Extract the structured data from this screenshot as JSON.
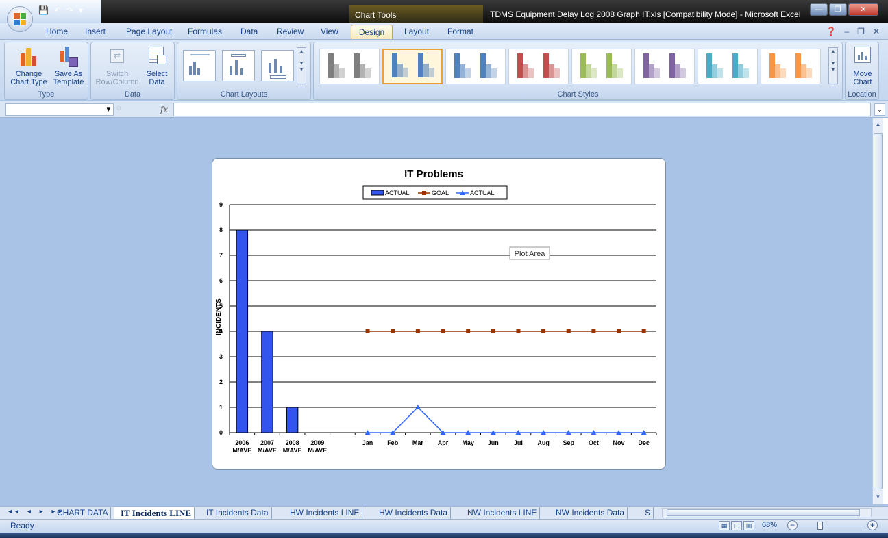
{
  "window": {
    "title": "TDMS Equipment Delay Log 2008 Graph IT.xls  [Compatibility Mode] - Microsoft Excel",
    "context_label": "Chart Tools",
    "controls": {
      "minimize": "—",
      "maximize": "❐",
      "close": "✕"
    }
  },
  "ribbon": {
    "tabs": [
      "Home",
      "Insert",
      "Page Layout",
      "Formulas",
      "Data",
      "Review",
      "View",
      "Design",
      "Layout",
      "Format"
    ],
    "active_tab": "Design",
    "groups": {
      "type": {
        "label": "Type",
        "change_chart_type": "Change\nChart Type",
        "save_as_template": "Save As\nTemplate"
      },
      "data": {
        "label": "Data",
        "switch_row_column": "Switch\nRow/Column",
        "select_data": "Select\nData"
      },
      "chart_layouts": {
        "label": "Chart Layouts"
      },
      "chart_styles": {
        "label": "Chart Styles"
      },
      "location": {
        "label": "Location",
        "move_chart": "Move\nChart"
      }
    },
    "style_colors": [
      "#7f7f7f",
      "#4f81bd",
      "#4f81bd",
      "#c0504d",
      "#9bbb59",
      "#8064a2",
      "#4bacc6",
      "#f79646"
    ]
  },
  "formula_bar": {
    "name_box": "",
    "fx_label": "fx",
    "formula": ""
  },
  "chart": {
    "tooltip": "Plot Area",
    "y_axis_label": "INCIDENTS"
  },
  "chart_data": {
    "type": "bar+line",
    "title": "IT Problems",
    "ylabel": "INCIDENTS",
    "ylim": [
      0,
      9
    ],
    "yticks": [
      0,
      1,
      2,
      3,
      4,
      5,
      6,
      7,
      8,
      9
    ],
    "grid": true,
    "legend_position": "top",
    "categories": [
      "2006\nM/AVE",
      "2007\nM/AVE",
      "2008\nM/AVE",
      "2009\nM/AVE",
      "",
      "Jan",
      "Feb",
      "Mar",
      "Apr",
      "May",
      "Jun",
      "Jul",
      "Aug",
      "Sep",
      "Oct",
      "Nov",
      "Dec"
    ],
    "series": [
      {
        "name": "ACTUAL",
        "kind": "bar",
        "color": "#3355ee",
        "values": [
          8,
          4,
          1,
          0,
          null,
          null,
          null,
          null,
          null,
          null,
          null,
          null,
          null,
          null,
          null,
          null,
          null
        ]
      },
      {
        "name": "GOAL",
        "kind": "line",
        "marker": "square",
        "color": "#993300",
        "values": [
          null,
          null,
          null,
          null,
          null,
          4,
          4,
          4,
          4,
          4,
          4,
          4,
          4,
          4,
          4,
          4,
          4
        ]
      },
      {
        "name": "ACTUAL",
        "kind": "line",
        "marker": "triangle",
        "color": "#3366ff",
        "values": [
          null,
          null,
          null,
          null,
          null,
          0,
          0,
          1,
          0,
          0,
          0,
          0,
          0,
          0,
          0,
          0,
          0
        ]
      }
    ]
  },
  "sheets": {
    "nav": "◂◂ ◂ ▸ ▸▸",
    "tabs": [
      "CHART DATA",
      "IT Incidents LINE",
      "IT Incidents Data",
      "HW Incidents LINE",
      "HW Incidents Data",
      "NW Incidents LINE",
      "NW Incidents Data",
      "S"
    ],
    "active": "IT Incidents LINE"
  },
  "status": {
    "text": "Ready",
    "zoom": "68%"
  }
}
